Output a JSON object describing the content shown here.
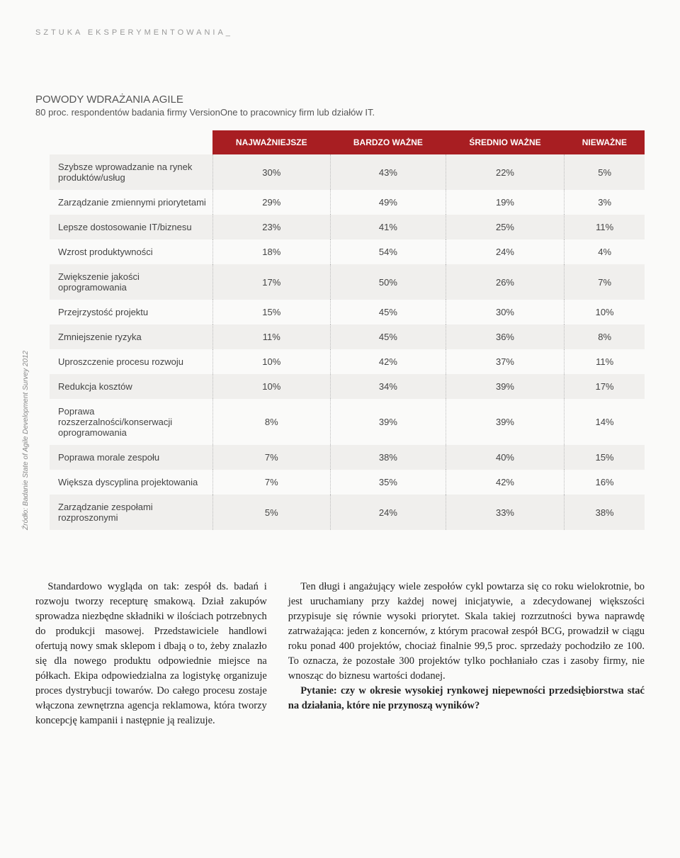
{
  "section_header": "SZTUKA EKSPERYMENTOWANIA_",
  "chart": {
    "title": "POWODY WDRAŻANIA AGILE",
    "subtitle": "80 proc. respondentów badania firmy VersionOne to pracownicy firm lub działów IT.",
    "source": "Źródło: Badanie State of Agile Development Survey 2012",
    "headers": [
      "",
      "NAJWAŻNIEJSZE",
      "BARDZO WAŻNE",
      "ŚREDNIO WAŻNE",
      "NIEWAŻNE"
    ],
    "rows": [
      {
        "label": "Szybsze wprowadzanie na rynek produktów/usług",
        "vals": [
          "30%",
          "43%",
          "22%",
          "5%"
        ]
      },
      {
        "label": "Zarządzanie zmiennymi priorytetami",
        "vals": [
          "29%",
          "49%",
          "19%",
          "3%"
        ]
      },
      {
        "label": "Lepsze dostosowanie IT/biznesu",
        "vals": [
          "23%",
          "41%",
          "25%",
          "11%"
        ]
      },
      {
        "label": "Wzrost produktywności",
        "vals": [
          "18%",
          "54%",
          "24%",
          "4%"
        ]
      },
      {
        "label": "Zwiększenie jakości oprogramowania",
        "vals": [
          "17%",
          "50%",
          "26%",
          "7%"
        ]
      },
      {
        "label": "Przejrzystość projektu",
        "vals": [
          "15%",
          "45%",
          "30%",
          "10%"
        ]
      },
      {
        "label": "Zmniejszenie ryzyka",
        "vals": [
          "11%",
          "45%",
          "36%",
          "8%"
        ]
      },
      {
        "label": "Uproszczenie procesu rozwoju",
        "vals": [
          "10%",
          "42%",
          "37%",
          "11%"
        ]
      },
      {
        "label": "Redukcja kosztów",
        "vals": [
          "10%",
          "34%",
          "39%",
          "17%"
        ]
      },
      {
        "label": "Poprawa rozszerzalności/konserwacji oprogramowania",
        "vals": [
          "8%",
          "39%",
          "39%",
          "14%"
        ]
      },
      {
        "label": "Poprawa morale zespołu",
        "vals": [
          "7%",
          "38%",
          "40%",
          "15%"
        ]
      },
      {
        "label": "Większa dyscyplina projektowania",
        "vals": [
          "7%",
          "35%",
          "42%",
          "16%"
        ]
      },
      {
        "label": "Zarządzanie zespołami rozproszonymi",
        "vals": [
          "5%",
          "24%",
          "33%",
          "38%"
        ]
      }
    ]
  },
  "body": {
    "left_p1": "Standardowo wygląda on tak: zespół ds. badań i rozwoju tworzy recepturę smakową. Dział zakupów sprowadza niezbędne składniki w ilościach potrzebnych do produkcji masowej. Przedstawiciele handlowi ofertują nowy smak sklepom i dbają o to, żeby znalazło się dla nowego produktu odpowiednie miejsce na półkach. Ekipa odpowiedzialna za logistykę organizuje proces dystrybucji towarów. Do całego procesu zostaje włączona zewnętrzna agencja reklamowa, która tworzy koncepcję kampanii i następnie ją realizuje.",
    "right_p1": "Ten długi i angażujący wiele zespołów cykl powtarza się co roku wielokrotnie, bo jest uruchamiany przy każdej nowej inicjatywie, a zdecydowanej większości przypisuje się równie wysoki priorytet. Skala takiej rozrzutności bywa naprawdę zatrważająca: jeden z koncernów, z którym pracował zespół BCG, prowadził w ciągu roku ponad 400 projektów, chociaż finalnie 99,5 proc. sprzedaży pochodziło ze 100. To oznacza, że pozostałe 300 projektów tylko pochłaniało czas i zasoby firmy, nie wnosząc do biznesu wartości dodanej.",
    "right_p2_bold": "Pytanie: czy w okresie wysokiej rynkowej niepewności przedsiębiorstwa stać na działania, które nie przynoszą wyników?"
  }
}
